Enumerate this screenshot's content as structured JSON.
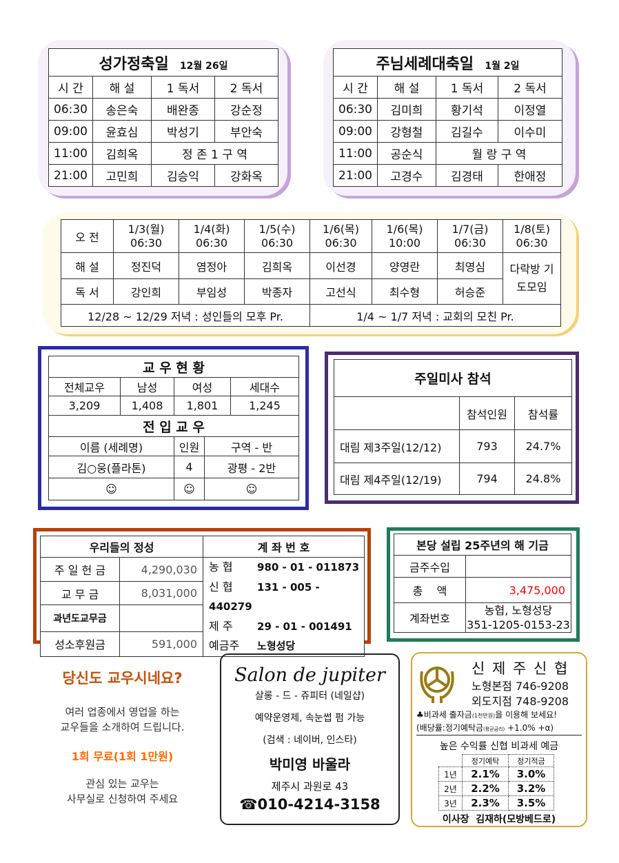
{
  "feast1": {
    "title": "성가정축일",
    "date": "12월 26일",
    "headers": [
      "시 간",
      "해 설",
      "1 독서",
      "2 독서"
    ],
    "rows": [
      [
        "06:30",
        "송은숙",
        "배완종",
        "강순정"
      ],
      [
        "09:00",
        "윤효심",
        "박성기",
        "부안숙"
      ],
      [
        "11:00",
        "김희옥",
        "정 존 1 구 역",
        ""
      ],
      [
        "21:00",
        "고민희",
        "김승익",
        "강화옥"
      ]
    ]
  },
  "feast2": {
    "title": "주님세례대축일",
    "date": "1월 2일",
    "headers": [
      "시 간",
      "해 설",
      "1 독서",
      "2 독서"
    ],
    "rows": [
      [
        "06:30",
        "김미희",
        "황기석",
        "이정열"
      ],
      [
        "09:00",
        "강형철",
        "김길수",
        "이수미"
      ],
      [
        "11:00",
        "공순식",
        "월 랑 구 역",
        ""
      ],
      [
        "21:00",
        "고경수",
        "김경태",
        "한애정"
      ]
    ]
  },
  "weekday": {
    "head_label": "오 전",
    "days": [
      [
        "1/3(월)",
        "06:30"
      ],
      [
        "1/4(화)",
        "06:30"
      ],
      [
        "1/5(수)",
        "06:30"
      ],
      [
        "1/6(목)",
        "06:30"
      ],
      [
        "1/6(목)",
        "10:00"
      ],
      [
        "1/7(금)",
        "06:30"
      ]
    ],
    "last_day": [
      "1/8(토)",
      "06:30"
    ],
    "last_note": "다락방 기도모임",
    "commentary_label": "해 설",
    "commentary": [
      "정진덕",
      "염정아",
      "김희옥",
      "이선경",
      "양영란",
      "최영심"
    ],
    "reader_label": "독 서",
    "readers": [
      "강인희",
      "부임성",
      "박종자",
      "고선식",
      "최수형",
      "허승준"
    ],
    "note1": "12/28 ~ 12/29 저녁 : 성인들의 모후 Pr.",
    "note2": "1/4 ~ 1/7 저녁 : 교회의 모친 Pr."
  },
  "parish": {
    "title": "교 우 현 황",
    "headers": [
      "전체교우",
      "남성",
      "여성",
      "세대수"
    ],
    "values": [
      "3,209",
      "1,408",
      "1,801",
      "1,245"
    ],
    "newcomers_title": "전 입 교 우",
    "nc_headers": [
      "이름 (세례명)",
      "인원",
      "구역 - 반"
    ],
    "nc_row": [
      "김○웅(플라톤)",
      "4",
      "광평 - 2반"
    ],
    "smiley": "☺"
  },
  "attendance": {
    "title": "주일미사 참석",
    "headers": [
      "참석인원",
      "참석률"
    ],
    "rows": [
      [
        "대림 제3주일(12/12)",
        "793",
        "24.7%"
      ],
      [
        "대림 제4주일(12/19)",
        "794",
        "24.8%"
      ]
    ]
  },
  "offering": {
    "title": "우리들의 정성",
    "rows": [
      [
        "주 일 헌 금",
        "4,290,030"
      ],
      [
        "교 무 금",
        "8,031,000"
      ],
      [
        "과년도교무금",
        ""
      ],
      [
        "성소후원금",
        "591,000"
      ]
    ],
    "account_title": "계 좌 번 호",
    "accounts": [
      [
        "농 협",
        "980 - 01 - 011873"
      ],
      [
        "신 협",
        "131 - 005 - 440279"
      ],
      [
        "제 주",
        "29 - 01 - 001491"
      ],
      [
        "예금주",
        "노형성당"
      ]
    ]
  },
  "fund": {
    "title": "본당 설립 25주년의 해 기금",
    "rows": [
      [
        "금주수입",
        ""
      ],
      [
        "총    액",
        "3,475,000"
      ]
    ],
    "account_label": "계좌번호",
    "account_bank": "농협, 노형성당",
    "account_no": "351-1205-0153-23",
    "accent": "#ff0000"
  },
  "promo": {
    "title": "당신도 교우시네요?",
    "line1": "여러 업종에서 영업을 하는",
    "line2": "교우들을 소개하여 드립니다.",
    "offer": "1회 무료(1회 1만원)",
    "line3": "관심 있는 교우는",
    "line4": "사무실로 신청하여 주세요",
    "title_color": "#c5520c",
    "offer_color": "#ff6a00"
  },
  "salon": {
    "name": "Salon de jupiter",
    "kor": "살롱 - 드 - 쥬피터 (네일샵)",
    "l1": "예약운영제, 속눈썹 펌 가능",
    "l2": "(검색 : 네이버, 인스타)",
    "owner": "박미영 바울라",
    "addr": "제주시 과원로 43",
    "phone_icon": "phone-icon",
    "phone": "010-4214-3158"
  },
  "shinhyup": {
    "name": "신 제 주 신 협",
    "branch1": "노형본점 746-9208",
    "branch2": "외도지점 748-9208",
    "promo1": "♣비과세 출자금",
    "promo1_small": "(1천만원)",
    "promo1_end": "을 이용해 보세요!",
    "promo2": "(배당률:정기예탁금",
    "promo2_small": "(평균금리)",
    "promo2_end": " +1.0% +α)",
    "rates_title": "높은 수익률 신협 비과세 예금",
    "rate_headers": [
      "정기예탁",
      "정기적금"
    ],
    "rates": [
      [
        "1년",
        "2.1%",
        "3.0%"
      ],
      [
        "2년",
        "2.2%",
        "3.2%"
      ],
      [
        "3년",
        "2.3%",
        "3.5%"
      ]
    ],
    "chairman": "이사장  김재하(모방베드로)",
    "logo": "shinhyup-logo"
  }
}
